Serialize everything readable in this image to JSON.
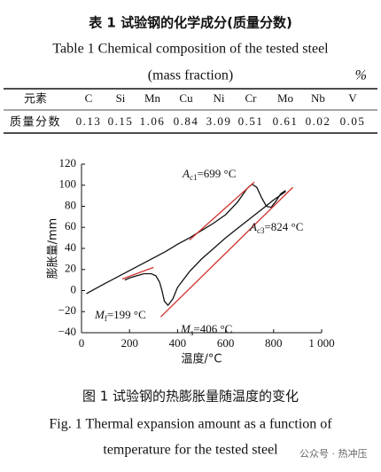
{
  "table": {
    "title": "表 1   试验钢的化学成分(质量分数)",
    "title_en": "Table 1    Chemical composition of the tested steel",
    "unit_note": "(mass fraction)",
    "unit": "%",
    "header": [
      "元素",
      "C",
      "Si",
      "Mn",
      "Cu",
      "Ni",
      "Cr",
      "Mo",
      "Nb",
      "V"
    ],
    "rows": [
      [
        "质量分数",
        "0.13",
        "0.15",
        "1.06",
        "0.84",
        "3.09",
        "0.51",
        "0.61",
        "0.02",
        "0.05"
      ]
    ]
  },
  "chart_data": {
    "type": "line",
    "xlabel": "温度/°C",
    "ylabel": "膨胀量/mm",
    "xlim": [
      0,
      1000
    ],
    "ylim": [
      -40,
      120
    ],
    "xticks": [
      0,
      200,
      400,
      600,
      800,
      {
        "value": 1000,
        "label": "1 000"
      }
    ],
    "yticks": [
      {
        "value": -40,
        "label": "−40"
      },
      {
        "value": -20,
        "label": "−20"
      },
      0,
      20,
      40,
      60,
      80,
      100,
      120
    ],
    "series": [
      {
        "color": "#111111",
        "x": [
          20,
          60,
          100,
          150,
          200,
          250,
          300,
          350,
          400,
          450,
          500,
          550,
          600,
          650,
          690,
          710,
          730,
          750,
          770,
          790,
          810,
          830,
          850
        ],
        "values": [
          -3,
          2,
          7,
          13,
          19,
          25,
          31,
          37,
          44,
          50,
          57,
          64,
          72,
          84,
          97,
          101,
          98,
          88,
          80,
          79,
          85,
          92,
          95
        ]
      },
      {
        "color": "#111111",
        "x": [
          850,
          800,
          750,
          700,
          650,
          600,
          550,
          500,
          450,
          400,
          380,
          360,
          345,
          335,
          325,
          310,
          290,
          260,
          230,
          200,
          180
        ],
        "values": [
          94,
          86,
          77,
          68,
          59,
          50,
          40,
          30,
          18,
          3,
          -8,
          -14,
          -10,
          0,
          8,
          14,
          16,
          16,
          14,
          12,
          10
        ]
      },
      {
        "color": "#d0332e",
        "x": [
          170,
          300
        ],
        "values": [
          11,
          22
        ]
      },
      {
        "color": "#d0332e",
        "x": [
          330,
          880
        ],
        "values": [
          -25,
          98
        ]
      },
      {
        "color": "#d0332e",
        "x": [
          450,
          720
        ],
        "values": [
          48,
          103
        ]
      }
    ],
    "annotations": [
      {
        "symbol": "A",
        "sub": "c1",
        "text": "=699 °C"
      },
      {
        "symbol": "A",
        "sub": "c3",
        "text": "=824 °C"
      },
      {
        "symbol": "M",
        "sub": "f",
        "text": "=199 °C"
      },
      {
        "symbol": "M",
        "sub": "s",
        "text": "=406 °C"
      }
    ]
  },
  "caption": {
    "cn": "图 1   试验钢的热膨胀量随温度的变化",
    "en1": "Fig. 1    Thermal expansion amount as a function of",
    "en2": "temperature for the tested steel"
  },
  "watermark": "公众号 · 热冲压"
}
